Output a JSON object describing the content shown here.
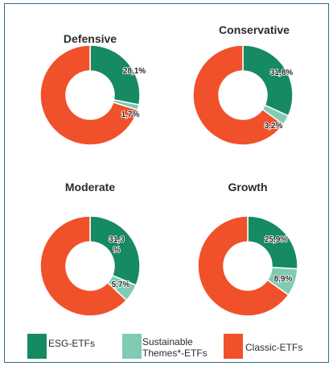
{
  "colors": {
    "esg": "#168a61",
    "sustainable": "#7fcbb4",
    "classic": "#f0512a",
    "frame": "#2f6d86"
  },
  "legend": [
    {
      "key": "esg",
      "label": "ESG-ETFs"
    },
    {
      "key": "sustainable",
      "label": "Sustainable Themes*-ETFs"
    },
    {
      "key": "classic",
      "label": "Classic-ETFs"
    }
  ],
  "chart_data": [
    {
      "type": "pie",
      "title": "Defensive",
      "series": [
        {
          "name": "ESG-ETFs",
          "value": 28.1,
          "label": "28,1%"
        },
        {
          "name": "Sustainable Themes*-ETFs",
          "value": 1.7,
          "label": "1,7%"
        },
        {
          "name": "Classic-ETFs",
          "value": 70.2,
          "label": ""
        }
      ]
    },
    {
      "type": "pie",
      "title": "Conservative",
      "series": [
        {
          "name": "ESG-ETFs",
          "value": 31.8,
          "label": "31,8%"
        },
        {
          "name": "Sustainable Themes*-ETFs",
          "value": 3.2,
          "label": "3,2%"
        },
        {
          "name": "Classic-ETFs",
          "value": 65.0,
          "label": ""
        }
      ]
    },
    {
      "type": "pie",
      "title": "Moderate",
      "series": [
        {
          "name": "ESG-ETFs",
          "value": 31.3,
          "label": "31,3 %"
        },
        {
          "name": "Sustainable Themes*-ETFs",
          "value": 5.7,
          "label": "5,7%"
        },
        {
          "name": "Classic-ETFs",
          "value": 63.0,
          "label": ""
        }
      ]
    },
    {
      "type": "pie",
      "title": "Growth",
      "series": [
        {
          "name": "ESG-ETFs",
          "value": 25.9,
          "label": "25,9%"
        },
        {
          "name": "Sustainable Themes*-ETFs",
          "value": 8.9,
          "label": "8,9%"
        },
        {
          "name": "Classic-ETFs",
          "value": 65.2,
          "label": ""
        }
      ]
    }
  ]
}
